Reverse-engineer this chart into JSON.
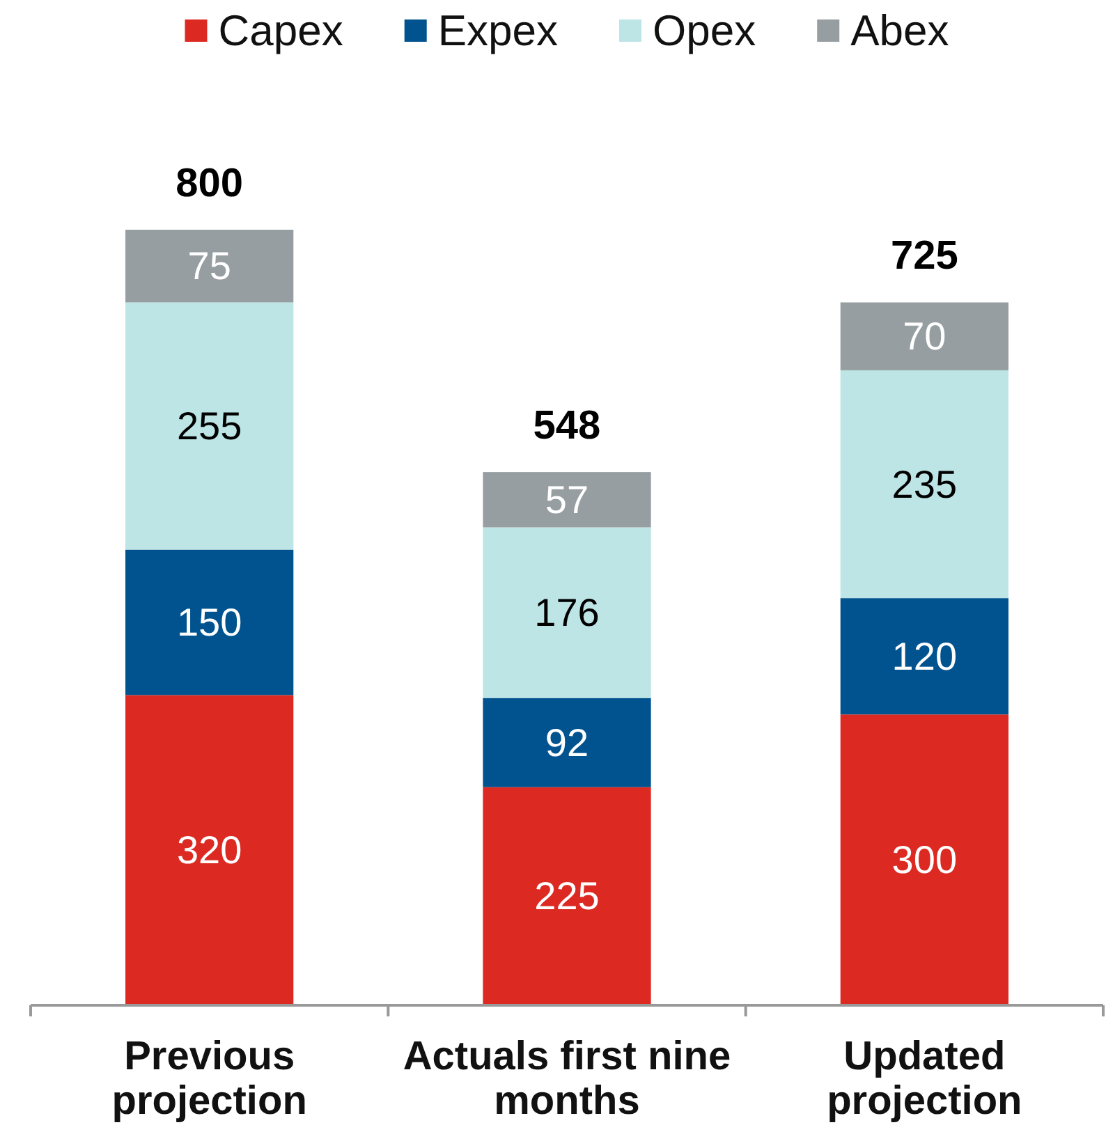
{
  "chart_data": {
    "type": "bar",
    "stacked": true,
    "categories": [
      "Previous projection",
      "Actuals first nine months",
      "Updated projection"
    ],
    "series": [
      {
        "name": "Capex",
        "color": "#dc2a22",
        "values": [
          320,
          225,
          300
        ]
      },
      {
        "name": "Expex",
        "color": "#00538e",
        "values": [
          150,
          92,
          120
        ]
      },
      {
        "name": "Opex",
        "color": "#bde5e6",
        "values": [
          255,
          176,
          235
        ]
      },
      {
        "name": "Abex",
        "color": "#979ea2",
        "values": [
          75,
          57,
          70
        ]
      }
    ],
    "data_labels": true,
    "totals": [
      "800",
      "548",
      "725"
    ],
    "legend": "top"
  }
}
